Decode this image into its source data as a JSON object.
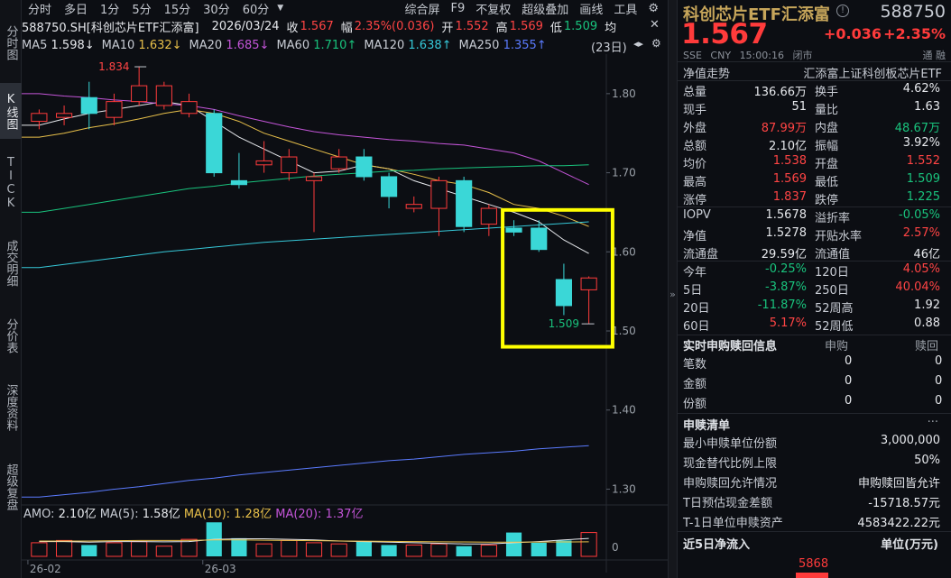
{
  "leftnav": [
    "分时图",
    "K线图",
    "TICK",
    "成交明细",
    "分价表",
    "深度资料",
    "超级复盘"
  ],
  "toolbar": {
    "periods": [
      "分时",
      "多日",
      "1分",
      "5分",
      "15分",
      "30分",
      "60分"
    ],
    "dropdown_icon": "chevron-down-icon",
    "right": [
      "综合屏",
      "F9",
      "不复权",
      "超级叠加",
      "画线",
      "工具"
    ],
    "settings_icon": "gear-icon"
  },
  "info": {
    "symbol": "588750.SH[科创芯片ETF汇添富]",
    "date": "2026/03/24",
    "close_label": "收",
    "close": "1.567",
    "range_label": "幅",
    "range": "2.35%(0.036)",
    "open_label": "开",
    "open": "1.552",
    "high_label": "高",
    "high": "1.569",
    "low_label": "低",
    "low": "1.509",
    "avg_label": "均",
    "close_btn": "✕"
  },
  "ma": [
    {
      "label": "MA5",
      "value": "1.598↓",
      "color": "#e6e8ec"
    },
    {
      "label": "MA10",
      "value": "1.632↓",
      "color": "#e8c04a"
    },
    {
      "label": "MA20",
      "value": "1.685↓",
      "color": "#c455d8"
    },
    {
      "label": "MA60",
      "value": "1.710↑",
      "color": "#19c37d"
    },
    {
      "label": "MA120",
      "value": "1.638↑",
      "color": "#36c8d8"
    },
    {
      "label": "MA250",
      "value": "1.355↑",
      "color": "#5b7bff"
    }
  ],
  "ma_label_color": "#c8ccd4",
  "ma_right": {
    "days": "(23日)",
    "icons": [
      "collapse-icon",
      "settings-icon"
    ]
  },
  "chart_data": {
    "type": "candlestick",
    "ylim": [
      1.28,
      1.85
    ],
    "y_ticks": [
      "1.80",
      "1.70",
      "1.60",
      "1.50",
      "1.40",
      "1.30"
    ],
    "x_ticks": [
      "26-02",
      "26-03"
    ],
    "high_annotation": "1.834",
    "low_annotation": "1.509",
    "candles": [
      {
        "o": 1.765,
        "c": 1.775,
        "h": 1.78,
        "l": 1.755
      },
      {
        "o": 1.77,
        "c": 1.775,
        "h": 1.785,
        "l": 1.76
      },
      {
        "o": 1.795,
        "c": 1.775,
        "h": 1.815,
        "l": 1.755
      },
      {
        "o": 1.77,
        "c": 1.79,
        "h": 1.8,
        "l": 1.76
      },
      {
        "o": 1.79,
        "c": 1.81,
        "h": 1.834,
        "l": 1.785
      },
      {
        "o": 1.785,
        "c": 1.81,
        "h": 1.815,
        "l": 1.78
      },
      {
        "o": 1.775,
        "c": 1.79,
        "h": 1.8,
        "l": 1.77
      },
      {
        "o": 1.775,
        "c": 1.7,
        "h": 1.78,
        "l": 1.695
      },
      {
        "o": 1.69,
        "c": 1.685,
        "h": 1.725,
        "l": 1.68
      },
      {
        "o": 1.71,
        "c": 1.715,
        "h": 1.74,
        "l": 1.7
      },
      {
        "o": 1.7,
        "c": 1.72,
        "h": 1.73,
        "l": 1.69
      },
      {
        "o": 1.69,
        "c": 1.695,
        "h": 1.7,
        "l": 1.625
      },
      {
        "o": 1.705,
        "c": 1.72,
        "h": 1.73,
        "l": 1.7
      },
      {
        "o": 1.72,
        "c": 1.695,
        "h": 1.73,
        "l": 1.69
      },
      {
        "o": 1.695,
        "c": 1.67,
        "h": 1.7,
        "l": 1.655
      },
      {
        "o": 1.655,
        "c": 1.66,
        "h": 1.67,
        "l": 1.65
      },
      {
        "o": 1.655,
        "c": 1.69,
        "h": 1.695,
        "l": 1.62
      },
      {
        "o": 1.69,
        "c": 1.632,
        "h": 1.695,
        "l": 1.625
      },
      {
        "o": 1.635,
        "c": 1.655,
        "h": 1.66,
        "l": 1.62
      },
      {
        "o": 1.63,
        "c": 1.625,
        "h": 1.64,
        "l": 1.62
      },
      {
        "o": 1.63,
        "c": 1.603,
        "h": 1.64,
        "l": 1.6
      },
      {
        "o": 1.565,
        "c": 1.532,
        "h": 1.585,
        "l": 1.52
      },
      {
        "o": 1.552,
        "c": 1.567,
        "h": 1.569,
        "l": 1.509
      }
    ],
    "ma_lines": {
      "MA5": [
        1.76,
        1.768,
        1.775,
        1.78,
        1.785,
        1.79,
        1.785,
        1.765,
        1.745,
        1.73,
        1.715,
        1.7,
        1.702,
        1.71,
        1.705,
        1.69,
        1.68,
        1.67,
        1.66,
        1.65,
        1.638,
        1.615,
        1.598
      ],
      "MA10": [
        1.745,
        1.75,
        1.757,
        1.762,
        1.768,
        1.775,
        1.78,
        1.775,
        1.765,
        1.75,
        1.74,
        1.73,
        1.72,
        1.71,
        1.705,
        1.698,
        1.69,
        1.685,
        1.675,
        1.66,
        1.655,
        1.645,
        1.632
      ],
      "MA20": [
        1.8,
        1.797,
        1.795,
        1.792,
        1.79,
        1.787,
        1.785,
        1.78,
        1.772,
        1.765,
        1.758,
        1.752,
        1.748,
        1.745,
        1.742,
        1.74,
        1.737,
        1.735,
        1.73,
        1.725,
        1.715,
        1.7,
        1.685
      ],
      "MA60": [
        1.65,
        1.655,
        1.66,
        1.665,
        1.67,
        1.675,
        1.68,
        1.683,
        1.687,
        1.69,
        1.693,
        1.696,
        1.698,
        1.7,
        1.702,
        1.703,
        1.705,
        1.706,
        1.707,
        1.708,
        1.709,
        1.709,
        1.71
      ],
      "MA120": [
        1.58,
        1.584,
        1.588,
        1.592,
        1.596,
        1.6,
        1.603,
        1.606,
        1.609,
        1.612,
        1.614,
        1.616,
        1.618,
        1.62,
        1.622,
        1.624,
        1.626,
        1.628,
        1.63,
        1.632,
        1.634,
        1.636,
        1.638
      ],
      "MA250": [
        1.29,
        1.293,
        1.296,
        1.3,
        1.303,
        1.307,
        1.311,
        1.314,
        1.318,
        1.321,
        1.324,
        1.327,
        1.33,
        1.333,
        1.336,
        1.338,
        1.341,
        1.344,
        1.346,
        1.348,
        1.351,
        1.353,
        1.355
      ]
    },
    "volume": {
      "title": "AMO:",
      "amo": "2.10亿",
      "ma5_label": "MA(5):",
      "ma5": "1.58亿",
      "ma10_label": "MA(10):",
      "ma10": "1.28亿",
      "ma20_label": "MA(20):",
      "ma20": "1.37亿",
      "y_tick": "0",
      "values": [
        1.2,
        1.4,
        1.0,
        1.2,
        1.3,
        0.9,
        1.5,
        3.0,
        1.6,
        1.1,
        1.4,
        1.2,
        1.1,
        1.3,
        1.0,
        1.0,
        1.1,
        0.9,
        1.0,
        2.1,
        1.2,
        1.4,
        2.1
      ]
    },
    "highlight_box": {
      "color": "#ffff00"
    }
  },
  "colors": {
    "up": "#ff3b3b",
    "down": "#3ad7d7",
    "grid": "#1d2027",
    "highlight": "#ffff00"
  },
  "quote": {
    "name": "科创芯片ETF汇添富",
    "code": "588750",
    "price": "1.567",
    "change": "+0.036",
    "pct": "+2.35%",
    "meta": [
      "SSE",
      "CNY",
      "15:00:16",
      "闭市"
    ],
    "meta_right": "通 融",
    "tab_left": "净值走势",
    "tab_right": "汇添富上证科创板芯片ETF"
  },
  "stats": [
    {
      "l1": "总量",
      "v1": "136.66万",
      "c1": "#e6e8ec",
      "l2": "换手",
      "v2": "4.62%",
      "c2": "#e6e8ec"
    },
    {
      "l1": "现手",
      "v1": "51",
      "c1": "#e6e8ec",
      "l2": "量比",
      "v2": "1.63",
      "c2": "#e6e8ec"
    },
    {
      "l1": "外盘",
      "v1": "87.99万",
      "c1": "#ff4444",
      "l2": "内盘",
      "v2": "48.67万",
      "c2": "#19c37d"
    },
    {
      "l1": "总额",
      "v1": "2.10亿",
      "c1": "#e6e8ec",
      "l2": "振幅",
      "v2": "3.92%",
      "c2": "#e6e8ec"
    },
    {
      "l1": "均价",
      "v1": "1.538",
      "c1": "#ff4444",
      "l2": "开盘",
      "v2": "1.552",
      "c2": "#ff4444"
    },
    {
      "l1": "最高",
      "v1": "1.569",
      "c1": "#ff4444",
      "l2": "最低",
      "v2": "1.509",
      "c2": "#19c37d"
    },
    {
      "l1": "涨停",
      "v1": "1.837",
      "c1": "#ff4444",
      "l2": "跌停",
      "v2": "1.225",
      "c2": "#19c37d"
    }
  ],
  "stats2": [
    {
      "l1": "IOPV",
      "v1": "1.5678",
      "c1": "#e6e8ec",
      "l2": "溢折率",
      "v2": "-0.05%",
      "c2": "#19c37d"
    },
    {
      "l1": "净值",
      "v1": "1.5278",
      "c1": "#e6e8ec",
      "l2": "开贴水率",
      "v2": "2.57%",
      "c2": "#ff4444"
    },
    {
      "l1": "流通盘",
      "v1": "29.59亿",
      "c1": "#e6e8ec",
      "l2": "流通值",
      "v2": "46亿",
      "c2": "#e6e8ec"
    }
  ],
  "stats3": [
    {
      "l1": "今年",
      "v1": "-0.25%",
      "c1": "#19c37d",
      "l2": "120日",
      "v2": "4.05%",
      "c2": "#ff4444"
    },
    {
      "l1": "5日",
      "v1": "-3.87%",
      "c1": "#19c37d",
      "l2": "250日",
      "v2": "40.04%",
      "c2": "#ff4444"
    },
    {
      "l1": "20日",
      "v1": "-11.87%",
      "c1": "#19c37d",
      "l2": "52周高",
      "v2": "1.92",
      "c2": "#e6e8ec"
    },
    {
      "l1": "60日",
      "v1": "5.17%",
      "c1": "#ff4444",
      "l2": "52周低",
      "v2": "0.88",
      "c2": "#e6e8ec"
    }
  ],
  "subscribe": {
    "title": "实时申购赎回信息",
    "col_a": "申购",
    "col_b": "赎回",
    "rows": [
      {
        "k": "笔数",
        "a": "0",
        "b": "0"
      },
      {
        "k": "金额",
        "a": "0",
        "b": "0"
      },
      {
        "k": "份额",
        "a": "0",
        "b": "0"
      }
    ]
  },
  "list": {
    "title": "申赎清单",
    "more": "···",
    "rows": [
      {
        "k": "最小申赎单位份额",
        "v": "3,000,000"
      },
      {
        "k": "现金替代比例上限",
        "v": "50%"
      },
      {
        "k": "申购赎回允许情况",
        "v": "申购赎回皆允许"
      },
      {
        "k": "T日预估现金差额",
        "v": "-15718.57元"
      },
      {
        "k": "T-1日单位申赎资产",
        "v": "4583422.22元"
      }
    ]
  },
  "netflow": {
    "title": "近5日净流入",
    "unit": "单位(万元)",
    "value": "5868",
    "bar_color": "#ff3b3b"
  }
}
